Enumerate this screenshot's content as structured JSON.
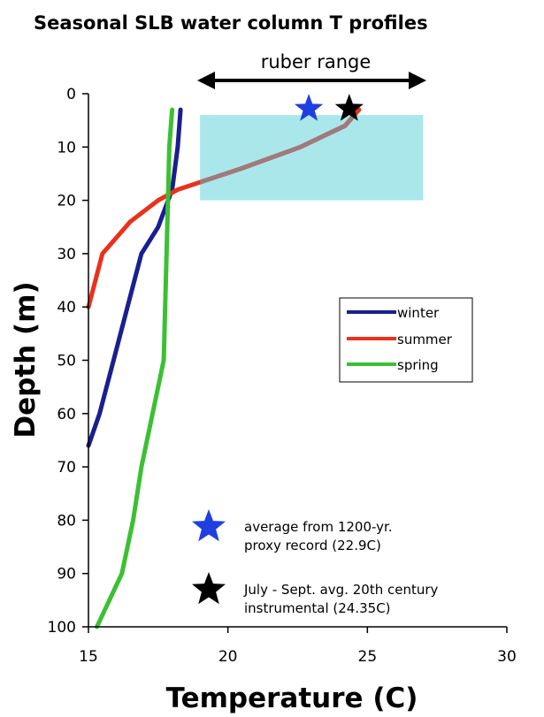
{
  "chart_data": {
    "type": "line",
    "title": "Seasonal SLB water column T profiles",
    "xlabel": "Temperature (C)",
    "ylabel": "Depth (m)",
    "xlim": [
      15,
      30
    ],
    "ylim": [
      0,
      100
    ],
    "y_inverted": true,
    "grid": false,
    "x_ticks": [
      15,
      20,
      25,
      30
    ],
    "y_ticks": [
      0,
      10,
      20,
      30,
      40,
      50,
      60,
      70,
      80,
      90,
      100
    ],
    "legend_position": "center-right",
    "series": [
      {
        "name": "winter",
        "color": "#1a1f8f",
        "points": [
          [
            18.3,
            3
          ],
          [
            18.2,
            10
          ],
          [
            18.0,
            18
          ],
          [
            17.5,
            25
          ],
          [
            16.9,
            30
          ],
          [
            16.4,
            40
          ],
          [
            15.9,
            50
          ],
          [
            15.4,
            60
          ],
          [
            15.0,
            66
          ]
        ]
      },
      {
        "name": "summer",
        "color": "#e8321c",
        "points": [
          [
            24.7,
            3
          ],
          [
            24.2,
            6
          ],
          [
            22.6,
            10
          ],
          [
            20.5,
            14
          ],
          [
            18.2,
            18
          ],
          [
            17.5,
            20
          ],
          [
            16.5,
            24
          ],
          [
            15.5,
            30
          ],
          [
            15.0,
            40
          ]
        ]
      },
      {
        "name": "spring",
        "color": "#3cc033",
        "points": [
          [
            18.0,
            3
          ],
          [
            17.9,
            10
          ],
          [
            17.85,
            20
          ],
          [
            17.8,
            30
          ],
          [
            17.75,
            40
          ],
          [
            17.7,
            50
          ],
          [
            17.3,
            60
          ],
          [
            16.9,
            70
          ],
          [
            16.6,
            80
          ],
          [
            16.2,
            90
          ],
          [
            15.3,
            100
          ]
        ]
      }
    ],
    "shaded_region": {
      "label": "ruber range",
      "x_range": [
        19,
        27
      ],
      "y_range": [
        4,
        20
      ],
      "color": "#aae7ea"
    },
    "markers": [
      {
        "label": "average from 1200-yr. proxy record (22.9C)",
        "label_lines": [
          "average from 1200-yr.",
          "proxy record (22.9C)"
        ],
        "x": 22.9,
        "y": 1.5,
        "color": "#1f3fe0",
        "shape": "star"
      },
      {
        "label": "July - Sept. avg. 20th century instrumental (24.35C)",
        "label_lines": [
          "July - Sept. avg. 20th century",
          "instrumental (24.35C)"
        ],
        "x": 24.35,
        "y": 1.5,
        "color": "#000000",
        "shape": "star"
      }
    ]
  }
}
